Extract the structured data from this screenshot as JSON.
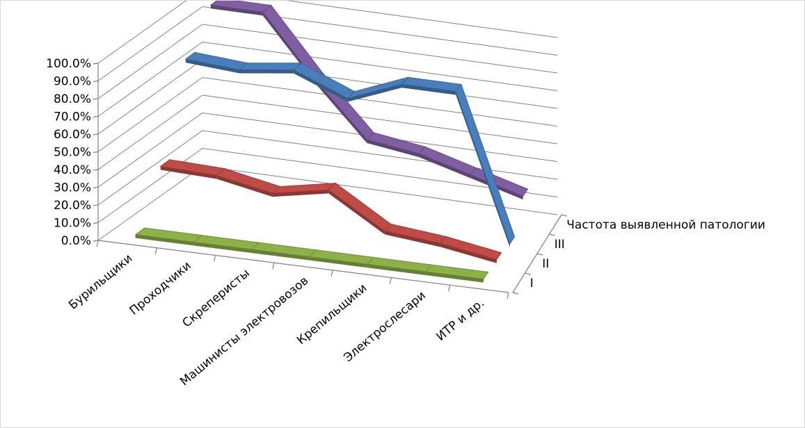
{
  "chart_data": {
    "type": "line",
    "title": "",
    "xlabel": "",
    "ylabel": "",
    "ylim": [
      0,
      1
    ],
    "y_tick_labels": [
      "0.0%",
      "10.0%",
      "20.0%",
      "30.0%",
      "40.0%",
      "50.0%",
      "60.0%",
      "70.0%",
      "80.0%",
      "90.0%",
      "100.0%"
    ],
    "categories": [
      "Бурильщики",
      "Проходчики",
      "Скреперисты",
      "Машинисты электровозов",
      "Крепильщики",
      "Электрослесари",
      "ИТР и др."
    ],
    "depth_labels": [
      "I",
      "II",
      "III",
      "Частота выявленной патологии"
    ],
    "grid": true,
    "series": [
      {
        "name": "Частота выявленной патологии",
        "values": [
          0.02,
          0.02,
          0.02,
          0.02,
          0.02,
          0.02,
          0.02
        ],
        "color": "#8db04a"
      },
      {
        "name": "III",
        "values": [
          0.3,
          0.29,
          0.23,
          0.29,
          0.1,
          0.07,
          0.02
        ],
        "color": "#be4b48"
      },
      {
        "name": "II",
        "values": [
          0.8,
          0.78,
          0.82,
          0.7,
          0.82,
          0.82,
          0.0
        ],
        "color": "#4a7ebb"
      },
      {
        "name": "I",
        "values": [
          1.0,
          1.0,
          0.66,
          0.36,
          0.32,
          0.24,
          0.16
        ],
        "color": "#7f5fa1"
      }
    ]
  }
}
